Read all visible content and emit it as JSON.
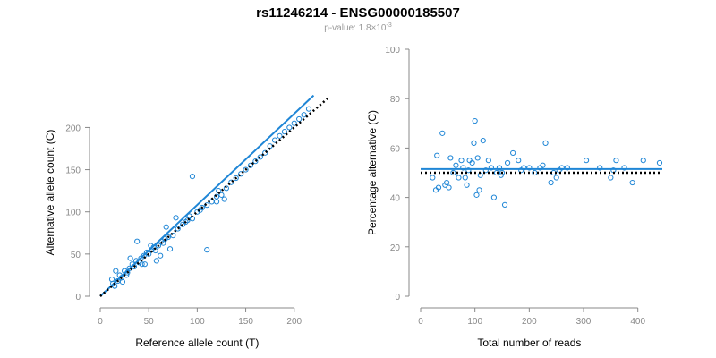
{
  "figure": {
    "title": "rs11246214 - ENSG00000185507",
    "pvalue_prefix": "p-value: 1.8×10",
    "pvalue_exponent": "-3"
  },
  "colors": {
    "points": "#1f86d6",
    "fit": "#1f86d6",
    "expected": "#000000",
    "axis": "#888888"
  },
  "chart_data": [
    {
      "type": "scatter",
      "title": "",
      "xlabel": "Reference allele count (T)",
      "ylabel": "Alternative allele count (C)",
      "xlim": [
        0,
        215
      ],
      "ylim": [
        0,
        245
      ],
      "xticks": [
        0,
        50,
        100,
        150,
        200
      ],
      "yticks": [
        0,
        50,
        100,
        150,
        200
      ],
      "grid": false,
      "x": [
        13,
        15,
        18,
        20,
        22,
        25,
        28,
        30,
        33,
        35,
        37,
        40,
        42,
        43,
        45,
        48,
        50,
        53,
        55,
        57,
        60,
        63,
        65,
        67,
        70,
        75,
        80,
        85,
        88,
        90,
        92,
        95,
        100,
        103,
        105,
        110,
        115,
        120,
        122,
        125,
        128,
        130,
        135,
        140,
        145,
        150,
        155,
        160,
        165,
        170,
        175,
        180,
        185,
        190,
        195,
        200,
        205,
        210,
        215,
        12,
        16,
        23,
        27,
        31,
        38,
        46,
        52,
        58,
        62,
        68,
        72,
        78,
        95,
        110,
        120
      ],
      "y": [
        15,
        12,
        18,
        25,
        22,
        30,
        28,
        33,
        38,
        35,
        42,
        40,
        45,
        38,
        48,
        52,
        50,
        55,
        58,
        54,
        60,
        65,
        63,
        68,
        70,
        72,
        80,
        85,
        88,
        90,
        95,
        92,
        100,
        102,
        105,
        108,
        112,
        118,
        125,
        120,
        115,
        128,
        135,
        140,
        145,
        150,
        155,
        160,
        165,
        170,
        178,
        185,
        190,
        195,
        200,
        205,
        210,
        215,
        222,
        20,
        30,
        17,
        25,
        45,
        65,
        38,
        60,
        42,
        48,
        82,
        56,
        93,
        142,
        55,
        112
      ],
      "lines": [
        {
          "kind": "fit",
          "style": "solid",
          "x": [
            0,
            220
          ],
          "y": [
            0,
            238
          ]
        },
        {
          "kind": "expected",
          "style": "dotted",
          "x": [
            0,
            235
          ],
          "y": [
            0,
            235
          ]
        }
      ]
    },
    {
      "type": "scatter",
      "title": "",
      "xlabel": "Total number of reads",
      "ylabel": "Percentage alternative (C)",
      "xlim": [
        0,
        445
      ],
      "ylim": [
        0,
        100
      ],
      "xticks": [
        0,
        100,
        200,
        300,
        400
      ],
      "yticks": [
        0,
        20,
        40,
        60,
        80,
        100
      ],
      "grid": false,
      "x": [
        22,
        30,
        33,
        40,
        45,
        48,
        52,
        55,
        60,
        65,
        70,
        75,
        78,
        82,
        85,
        90,
        95,
        98,
        100,
        103,
        105,
        108,
        110,
        115,
        120,
        125,
        130,
        135,
        140,
        145,
        150,
        155,
        160,
        170,
        180,
        185,
        190,
        200,
        210,
        220,
        225,
        230,
        240,
        245,
        250,
        255,
        260,
        270,
        305,
        330,
        350,
        355,
        360,
        375,
        390,
        410,
        440,
        28,
        88,
        148
      ],
      "y": [
        48,
        57,
        44,
        66,
        45,
        46,
        44,
        56,
        50,
        53,
        48,
        55,
        52,
        48,
        45,
        55,
        54,
        62,
        71,
        41,
        56,
        43,
        49,
        63,
        51,
        55,
        52,
        40,
        50,
        52,
        50,
        37,
        54,
        58,
        55,
        51,
        52,
        52,
        50,
        52,
        53,
        62,
        46,
        50,
        48,
        51,
        52,
        52,
        55,
        52,
        48,
        51,
        55,
        52,
        46,
        55,
        54,
        43,
        51,
        49
      ],
      "lines": [
        {
          "kind": "fit",
          "style": "solid",
          "x": [
            0,
            445
          ],
          "y": [
            51.5,
            51.5
          ]
        },
        {
          "kind": "expected",
          "style": "dotted",
          "x": [
            0,
            445
          ],
          "y": [
            50,
            50
          ]
        }
      ]
    }
  ]
}
